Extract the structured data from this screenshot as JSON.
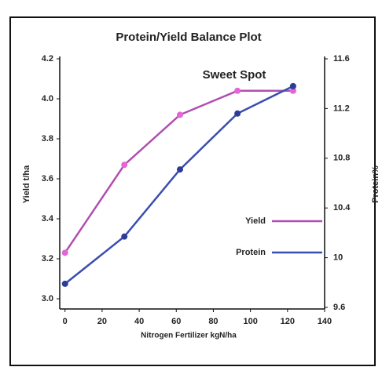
{
  "chart_data": {
    "type": "line",
    "title": "Protein/Yield Balance Plot",
    "annotation": "Sweet Spot",
    "xlabel": "Nitrogen Fertilizer kgN/ha",
    "ylabel": "Yield t/ha",
    "y2label": "Protein%",
    "x": [
      0,
      32,
      62,
      93,
      123
    ],
    "series": [
      {
        "name": "Yield",
        "color": "#b04fb0",
        "marker_color": "#e466d4",
        "values": [
          3.23,
          3.67,
          3.92,
          4.04,
          4.04
        ]
      },
      {
        "name": "Protein",
        "color": "#3a4db0",
        "marker_color": "#2d3c96",
        "axis": "y2",
        "values": [
          9.79,
          10.17,
          10.71,
          11.16,
          11.38
        ]
      }
    ],
    "xlim": [
      -2,
      140
    ],
    "xticks": [
      0,
      20,
      40,
      60,
      80,
      100,
      120,
      140
    ],
    "ylim": [
      3.0,
      4.2
    ],
    "yticks": [
      {
        "value": 3.0,
        "label": "3.0"
      },
      3.2,
      3.4,
      3.6,
      3.8,
      {
        "value": 4.0,
        "label": "4.0"
      },
      4.2
    ],
    "y2lim": [
      9.6,
      11.6
    ],
    "y2ticks": [
      9.6,
      10,
      10.4,
      10.8,
      11.2,
      11.6
    ],
    "grid": false,
    "legend": "right"
  }
}
